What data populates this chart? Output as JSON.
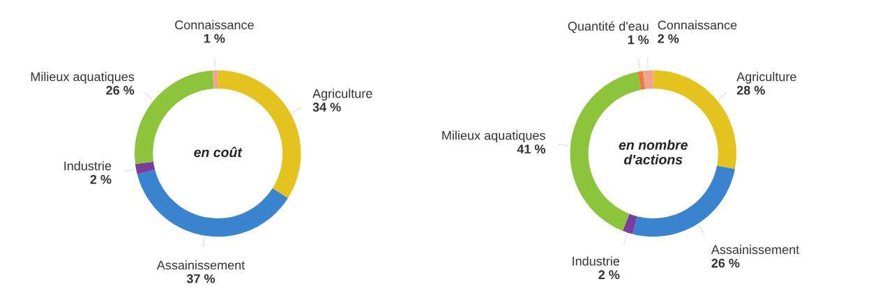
{
  "chart_data": [
    {
      "type": "donut",
      "title": "en coût",
      "categories": [
        "Agriculture",
        "Assainissement",
        "Industrie",
        "Milieux aquatiques",
        "Connaissance"
      ],
      "values": [
        34,
        37,
        2,
        26,
        1
      ],
      "value_labels": [
        "34 %",
        "37 %",
        "2 %",
        "26 %",
        "1 %"
      ],
      "colors": [
        "#e5c31f",
        "#3a84cf",
        "#7a3d9c",
        "#8cc43c",
        "#f0a48c"
      ],
      "legend": false
    },
    {
      "type": "donut",
      "title": "en nombre d'actions",
      "categories": [
        "Agriculture",
        "Assainissement",
        "Industrie",
        "Milieux aquatiques",
        "Quantité d'eau",
        "Connaissance"
      ],
      "values": [
        28,
        26,
        2,
        41,
        1,
        2
      ],
      "value_labels": [
        "28 %",
        "26 %",
        "2 %",
        "41 %",
        "1 %",
        "2 %"
      ],
      "colors": [
        "#e5c31f",
        "#3a84cf",
        "#7a3d9c",
        "#8cc43c",
        "#f07c3c",
        "#f0a48c"
      ],
      "legend": false
    }
  ]
}
